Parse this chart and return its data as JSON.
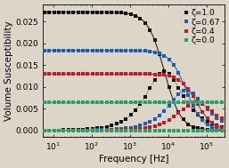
{
  "title": "",
  "xlabel": "Frequency [Hz]",
  "ylabel": "Volume Susceptibility",
  "xlim": [
    5.5,
    300000.0
  ],
  "ylim": [
    -0.0015,
    0.029
  ],
  "yticks": [
    0.0,
    0.005,
    0.01,
    0.015,
    0.02,
    0.025
  ],
  "series": [
    {
      "label": "ζ=1.0",
      "color": "#111111",
      "chi0": 0.0272,
      "fc": 8000
    },
    {
      "label": "ζ=0.67",
      "color": "#1a5fb4",
      "chi0": 0.0184,
      "fc": 30000
    },
    {
      "label": "ζ=0.4",
      "color": "#c01c28",
      "chi0": 0.013,
      "fc": 55000
    },
    {
      "label": "ζ=0.0",
      "color": "#26a269",
      "chi0": 0.0065,
      "fc": 10000000000.0
    }
  ],
  "background_color": "#ddd5c8",
  "legend_fontsize": 6.5,
  "axis_label_fontsize": 7.5,
  "tick_fontsize": 6.5,
  "marker_size": 2.8,
  "line_width": 0.7
}
